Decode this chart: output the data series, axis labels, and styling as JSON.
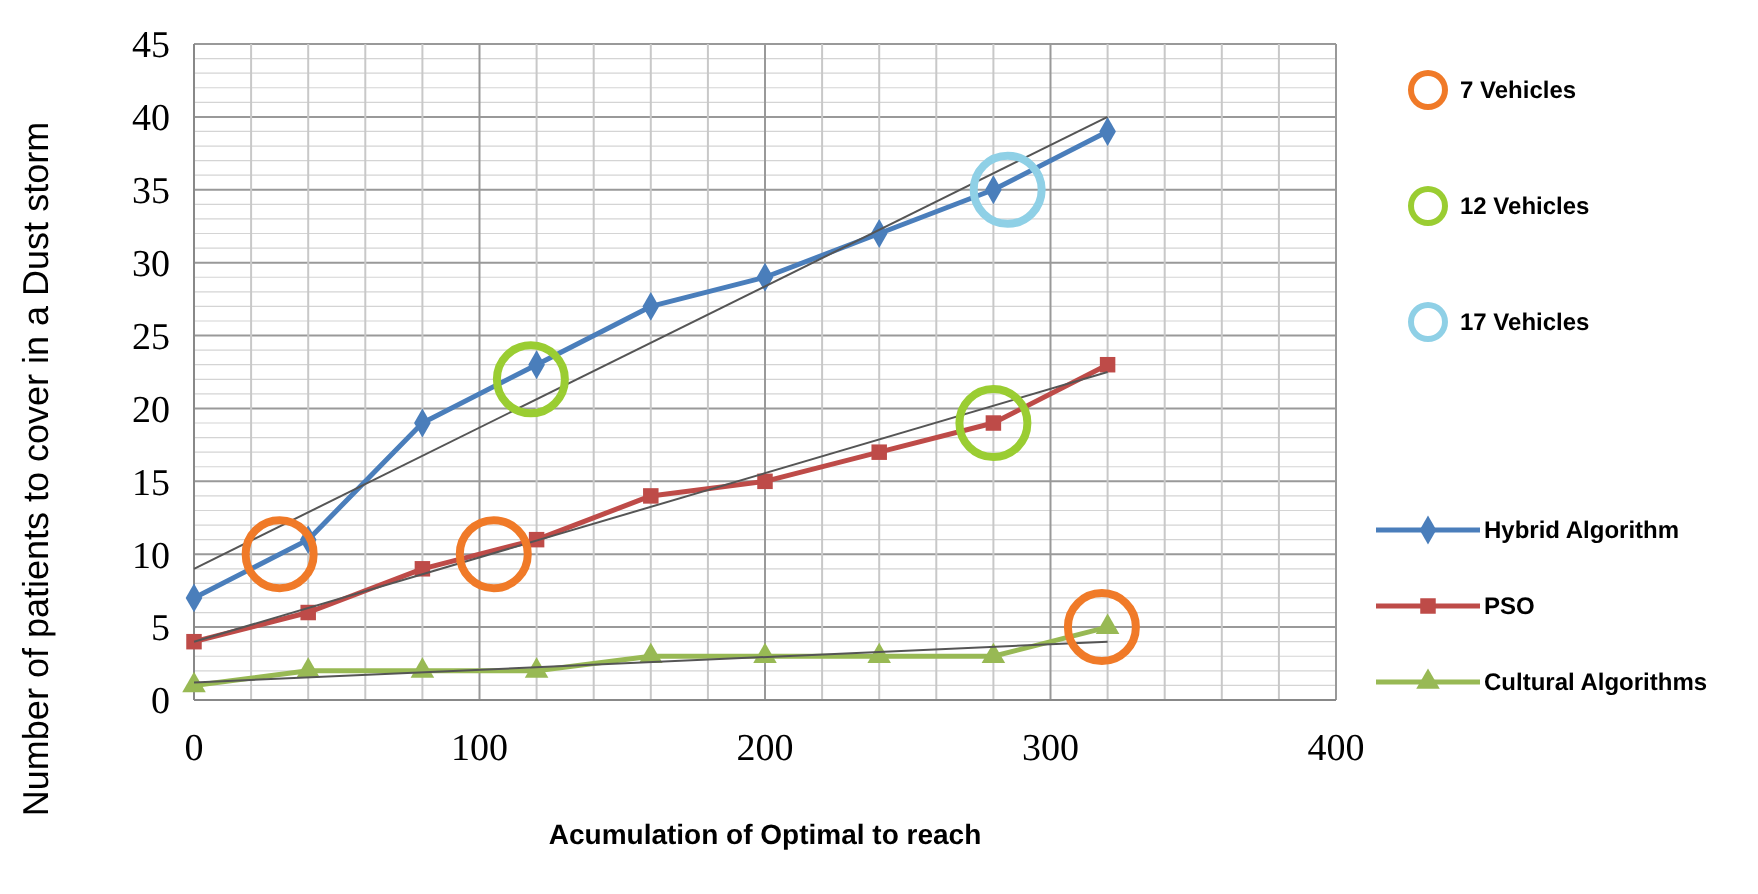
{
  "chart_data": {
    "type": "line",
    "xlabel": "Acumulation of Optimal to reach",
    "ylabel": "Number of patients to cover in a Dust storm",
    "xlim": [
      0,
      400
    ],
    "ylim": [
      0,
      45
    ],
    "xticks": [
      0,
      {
        "value": 20,
        "label": null
      },
      {
        "value": 40,
        "label": null
      },
      {
        "value": 60,
        "label": null
      },
      {
        "value": 80,
        "label": null
      },
      100,
      {
        "value": 120,
        "label": null
      },
      {
        "value": 140,
        "label": null
      },
      {
        "value": 160,
        "label": null
      },
      {
        "value": 180,
        "label": null
      },
      200,
      {
        "value": 220,
        "label": null
      },
      {
        "value": 240,
        "label": null
      },
      {
        "value": 260,
        "label": null
      },
      {
        "value": 280,
        "label": null
      },
      300,
      {
        "value": 320,
        "label": null
      },
      {
        "value": 340,
        "label": null
      },
      {
        "value": 360,
        "label": null
      },
      {
        "value": 380,
        "label": null
      },
      400
    ],
    "yticks": [
      0,
      {
        "value": 1,
        "label": null
      },
      {
        "value": 2,
        "label": null
      },
      {
        "value": 3,
        "label": null
      },
      {
        "value": 4,
        "label": null
      },
      5,
      {
        "value": 6,
        "label": null
      },
      {
        "value": 7,
        "label": null
      },
      {
        "value": 8,
        "label": null
      },
      {
        "value": 9,
        "label": null
      },
      10,
      {
        "value": 11,
        "label": null
      },
      {
        "value": 12,
        "label": null
      },
      {
        "value": 13,
        "label": null
      },
      {
        "value": 14,
        "label": null
      },
      15,
      {
        "value": 16,
        "label": null
      },
      {
        "value": 17,
        "label": null
      },
      {
        "value": 18,
        "label": null
      },
      {
        "value": 19,
        "label": null
      },
      20,
      {
        "value": 21,
        "label": null
      },
      {
        "value": 22,
        "label": null
      },
      {
        "value": 23,
        "label": null
      },
      {
        "value": 24,
        "label": null
      },
      25,
      {
        "value": 26,
        "label": null
      },
      {
        "value": 27,
        "label": null
      },
      {
        "value": 28,
        "label": null
      },
      {
        "value": 29,
        "label": null
      },
      30,
      {
        "value": 31,
        "label": null
      },
      {
        "value": 32,
        "label": null
      },
      {
        "value": 33,
        "label": null
      },
      {
        "value": 34,
        "label": null
      },
      35,
      {
        "value": 36,
        "label": null
      },
      {
        "value": 37,
        "label": null
      },
      {
        "value": 38,
        "label": null
      },
      {
        "value": 39,
        "label": null
      },
      40,
      {
        "value": 41,
        "label": null
      },
      {
        "value": 42,
        "label": null
      },
      {
        "value": 43,
        "label": null
      },
      {
        "value": 44,
        "label": null
      },
      45
    ],
    "grid": true,
    "legend": "right",
    "series": [
      {
        "name": "7 Vehicles",
        "type": "scatter",
        "marker": "circle",
        "color": "#f07a28",
        "x": [
          30,
          105,
          318
        ],
        "values": [
          10,
          10,
          5
        ]
      },
      {
        "name": "12 Vehicles",
        "type": "scatter",
        "marker": "circle",
        "color": "#9acd32",
        "x": [
          118,
          280
        ],
        "values": [
          22,
          19
        ]
      },
      {
        "name": "17 Vehicles",
        "type": "scatter",
        "marker": "circle",
        "color": "#8fd0e6",
        "x": [
          285
        ],
        "values": [
          35
        ]
      },
      {
        "name": "Hybrid Algorithm",
        "marker": "diamond",
        "color": "#4a7ebb",
        "x": [
          0,
          40,
          80,
          120,
          160,
          200,
          240,
          280,
          320
        ],
        "values": [
          7,
          11,
          19,
          23,
          27,
          29,
          32,
          35,
          39
        ]
      },
      {
        "name": "PSO",
        "marker": "square",
        "color": "#be4b48",
        "x": [
          0,
          40,
          80,
          120,
          160,
          200,
          240,
          280,
          320
        ],
        "values": [
          4,
          6,
          9,
          11,
          14,
          15,
          17,
          19,
          23
        ]
      },
      {
        "name": "Cultural Algorithms",
        "marker": "triangle",
        "color": "#98b954",
        "x": [
          0,
          40,
          80,
          120,
          160,
          200,
          240,
          280,
          320
        ],
        "values": [
          1,
          2,
          2,
          2,
          3,
          3,
          3,
          3,
          5
        ]
      },
      {
        "type": "line",
        "marker": "none",
        "color": "#555555",
        "x": [
          0,
          320
        ],
        "values": [
          9,
          40
        ]
      },
      {
        "type": "line",
        "marker": "none",
        "color": "#555555",
        "x": [
          0,
          320
        ],
        "values": [
          4,
          22.5
        ]
      },
      {
        "type": "line",
        "marker": "none",
        "color": "#555555",
        "x": [
          0,
          320
        ],
        "values": [
          1.2,
          4
        ]
      }
    ]
  }
}
